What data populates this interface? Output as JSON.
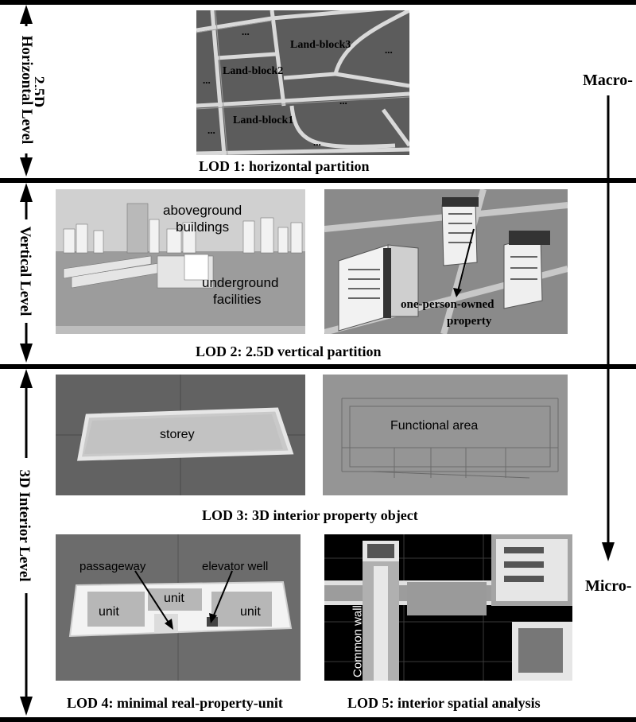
{
  "levels": {
    "horizontal": "2.5D\nHorizontal Level",
    "horizontal_line1": "2.5D",
    "horizontal_line2": "Horizontal Level",
    "vertical": "Vertical Level",
    "interior": "3D Interior Level"
  },
  "scale": {
    "top": "Macro-",
    "bottom": "Micro-"
  },
  "lod1": {
    "caption": "LOD 1: horizontal partition",
    "blocks": [
      "Land-block3",
      "Land-block2",
      "Land-block1"
    ],
    "ellipsis": "..."
  },
  "lod2": {
    "caption": "LOD 2: 2.5D vertical partition",
    "aboveground": "aboveground\nbuildings",
    "aboveground_l1": "aboveground",
    "aboveground_l2": "buildings",
    "underground_l1": "underground",
    "underground_l2": "facilities",
    "property_l1": "one-person-owned",
    "property_l2": "property"
  },
  "lod3": {
    "caption": "LOD 3: 3D interior property object",
    "storey": "storey",
    "functional": "Functional area"
  },
  "lod4": {
    "caption": "LOD 4: minimal real-property-unit",
    "passageway": "passageway",
    "elevator": "elevator well",
    "unit": "unit"
  },
  "lod5": {
    "caption": "LOD 5: interior spatial analysis",
    "common_wall": "Common wall"
  }
}
